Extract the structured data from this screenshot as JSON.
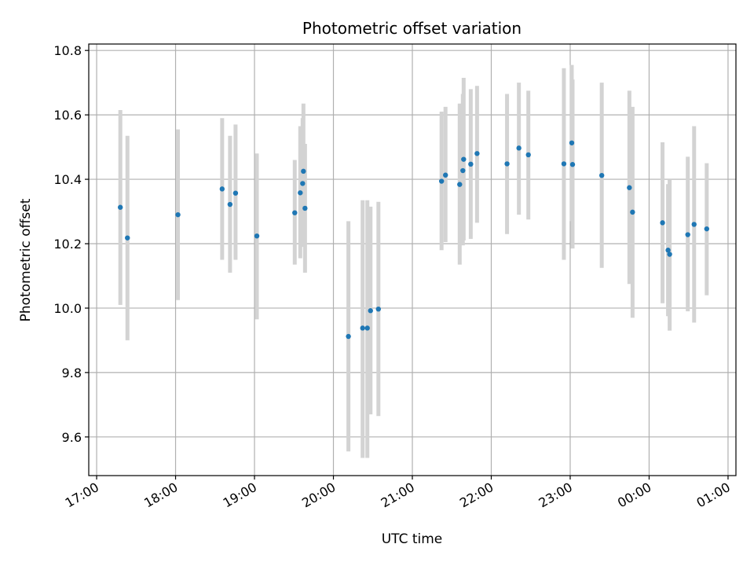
{
  "chart_data": {
    "type": "scatter",
    "title": "Photometric offset variation",
    "xlabel": "UTC time",
    "ylabel": "Photometric offset",
    "x_unit": "hours since 17:00 UTC",
    "xlim": [
      -0.1,
      8.1
    ],
    "ylim": [
      9.48,
      10.82
    ],
    "x_ticks": [
      0,
      1,
      2,
      3,
      4,
      5,
      6,
      7,
      8
    ],
    "x_tick_labels": [
      "17:00",
      "18:00",
      "19:00",
      "20:00",
      "21:00",
      "22:00",
      "23:00",
      "00:00",
      "01:00"
    ],
    "y_ticks": [
      9.6,
      9.8,
      10.0,
      10.2,
      10.4,
      10.6,
      10.8
    ],
    "y_tick_labels": [
      "9.6",
      "9.8",
      "10.0",
      "10.2",
      "10.4",
      "10.6",
      "10.8"
    ],
    "grid": true,
    "marker_color": "#1f77b4",
    "errorbar_color": "#d3d3d3",
    "points": [
      {
        "x": 0.3,
        "y": 10.313,
        "low": 10.01,
        "high": 10.615
      },
      {
        "x": 0.39,
        "y": 10.218,
        "low": 9.9,
        "high": 10.535
      },
      {
        "x": 1.03,
        "y": 10.29,
        "low": 10.025,
        "high": 10.555
      },
      {
        "x": 1.59,
        "y": 10.37,
        "low": 10.15,
        "high": 10.59
      },
      {
        "x": 1.69,
        "y": 10.322,
        "low": 10.11,
        "high": 10.535
      },
      {
        "x": 1.76,
        "y": 10.357,
        "low": 10.15,
        "high": 10.57
      },
      {
        "x": 2.03,
        "y": 10.224,
        "low": 9.965,
        "high": 10.48
      },
      {
        "x": 2.51,
        "y": 10.296,
        "low": 10.135,
        "high": 10.46
      },
      {
        "x": 2.58,
        "y": 10.358,
        "low": 10.155,
        "high": 10.565
      },
      {
        "x": 2.61,
        "y": 10.387,
        "low": 10.19,
        "high": 10.59
      },
      {
        "x": 2.62,
        "y": 10.425,
        "low": 10.21,
        "high": 10.635
      },
      {
        "x": 2.64,
        "y": 10.31,
        "low": 10.11,
        "high": 10.51
      },
      {
        "x": 3.19,
        "y": 9.912,
        "low": 9.555,
        "high": 10.27
      },
      {
        "x": 3.37,
        "y": 9.938,
        "low": 9.535,
        "high": 10.335
      },
      {
        "x": 3.43,
        "y": 9.938,
        "low": 9.535,
        "high": 10.335
      },
      {
        "x": 3.47,
        "y": 9.992,
        "low": 9.67,
        "high": 10.315
      },
      {
        "x": 3.57,
        "y": 9.997,
        "low": 9.665,
        "high": 10.33
      },
      {
        "x": 4.37,
        "y": 10.394,
        "low": 10.18,
        "high": 10.61
      },
      {
        "x": 4.42,
        "y": 10.413,
        "low": 10.205,
        "high": 10.625
      },
      {
        "x": 4.6,
        "y": 10.384,
        "low": 10.135,
        "high": 10.635
      },
      {
        "x": 4.64,
        "y": 10.427,
        "low": 10.195,
        "high": 10.665
      },
      {
        "x": 4.65,
        "y": 10.462,
        "low": 10.21,
        "high": 10.715
      },
      {
        "x": 4.74,
        "y": 10.447,
        "low": 10.215,
        "high": 10.68
      },
      {
        "x": 4.82,
        "y": 10.48,
        "low": 10.265,
        "high": 10.69
      },
      {
        "x": 5.2,
        "y": 10.448,
        "low": 10.23,
        "high": 10.665
      },
      {
        "x": 5.35,
        "y": 10.497,
        "low": 10.29,
        "high": 10.7
      },
      {
        "x": 5.47,
        "y": 10.476,
        "low": 10.275,
        "high": 10.675
      },
      {
        "x": 5.92,
        "y": 10.448,
        "low": 10.15,
        "high": 10.745
      },
      {
        "x": 6.02,
        "y": 10.513,
        "low": 10.27,
        "high": 10.755
      },
      {
        "x": 6.03,
        "y": 10.446,
        "low": 10.185,
        "high": 10.71
      },
      {
        "x": 6.4,
        "y": 10.412,
        "low": 10.125,
        "high": 10.7
      },
      {
        "x": 6.75,
        "y": 10.374,
        "low": 10.075,
        "high": 10.675
      },
      {
        "x": 6.79,
        "y": 10.298,
        "low": 9.97,
        "high": 10.625
      },
      {
        "x": 7.17,
        "y": 10.265,
        "low": 10.015,
        "high": 10.515
      },
      {
        "x": 7.24,
        "y": 10.18,
        "low": 9.975,
        "high": 10.385
      },
      {
        "x": 7.26,
        "y": 10.167,
        "low": 9.93,
        "high": 10.4
      },
      {
        "x": 7.49,
        "y": 10.228,
        "low": 9.99,
        "high": 10.47
      },
      {
        "x": 7.57,
        "y": 10.26,
        "low": 9.955,
        "high": 10.565
      },
      {
        "x": 7.73,
        "y": 10.246,
        "low": 10.04,
        "high": 10.45
      }
    ]
  }
}
